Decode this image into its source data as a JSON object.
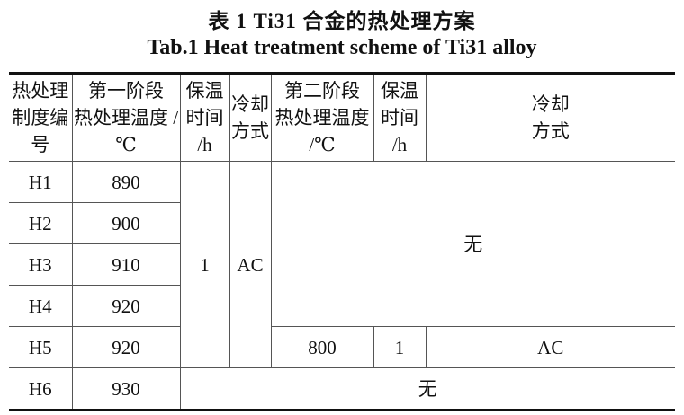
{
  "caption_cn": "表 1  Ti31 合金的热处理方案",
  "caption_en": "Tab.1  Heat treatment scheme of Ti31 alloy",
  "headers": [
    [
      "热处理",
      "制度编号"
    ],
    [
      "第一阶段",
      "热处理温度 /℃"
    ],
    [
      "保温",
      "时间 /h"
    ],
    [
      "冷却",
      "方式"
    ],
    [
      "第二阶段",
      "热处理温度 /℃"
    ],
    [
      "保温",
      "时间 /h"
    ],
    [
      "冷却",
      "方式"
    ]
  ],
  "rows": [
    {
      "id": "H1",
      "t1": "890"
    },
    {
      "id": "H2",
      "t1": "900"
    },
    {
      "id": "H3",
      "t1": "910"
    },
    {
      "id": "H4",
      "t1": "920"
    },
    {
      "id": "H5",
      "t1": "920",
      "t2": "800",
      "time2": "1",
      "cool2": "AC"
    },
    {
      "id": "H6",
      "t1": "930"
    }
  ],
  "shared_time1": "1",
  "shared_cool1": "AC",
  "none_label": "无"
}
